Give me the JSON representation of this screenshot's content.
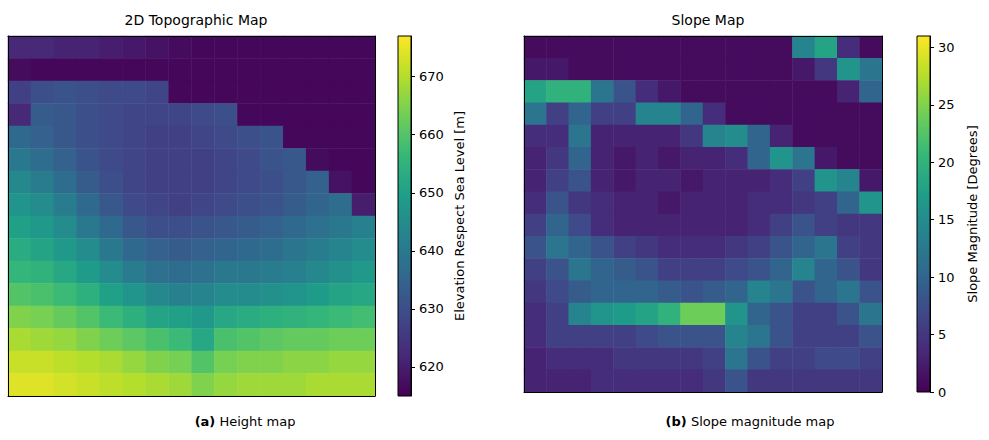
{
  "chart_data": [
    {
      "type": "heatmap",
      "title": "2D Topographic Map",
      "caption": {
        "label": "(a)",
        "text": "Height map"
      },
      "tick_labels": false,
      "colorbar_label": "Elevation Respect Sea Level [m]",
      "colorbar_range": [
        615,
        677
      ],
      "colorbar_ticks": [
        620,
        630,
        640,
        650,
        660,
        670
      ],
      "cells": [
        [
          622,
          622,
          621,
          621,
          620,
          619,
          618,
          617,
          616,
          616,
          616,
          616,
          616,
          616,
          616,
          616
        ],
        [
          617,
          616,
          616,
          616,
          616,
          616,
          616,
          616,
          616,
          616,
          616,
          616,
          616,
          616,
          616,
          616
        ],
        [
          627,
          630,
          631,
          630,
          629,
          629,
          628,
          616,
          616,
          616,
          616,
          616,
          616,
          616,
          616,
          616
        ],
        [
          622,
          633,
          632,
          630,
          629,
          628,
          628,
          628,
          629,
          630,
          616,
          616,
          616,
          616,
          616,
          616
        ],
        [
          636,
          634,
          632,
          630,
          629,
          628,
          627,
          627,
          628,
          629,
          630,
          631,
          616,
          616,
          616,
          616
        ],
        [
          640,
          637,
          634,
          631,
          629,
          628,
          627,
          627,
          627,
          628,
          629,
          631,
          632,
          617,
          616,
          616
        ],
        [
          644,
          641,
          637,
          633,
          630,
          628,
          627,
          627,
          627,
          628,
          629,
          630,
          632,
          634,
          618,
          616
        ],
        [
          647,
          645,
          641,
          636,
          632,
          629,
          628,
          627,
          628,
          629,
          630,
          631,
          633,
          635,
          637,
          620
        ],
        [
          650,
          648,
          645,
          640,
          636,
          632,
          630,
          630,
          631,
          632,
          633,
          634,
          636,
          638,
          640,
          642
        ],
        [
          653,
          651,
          648,
          645,
          640,
          636,
          634,
          633,
          634,
          635,
          636,
          637,
          639,
          641,
          643,
          645
        ],
        [
          656,
          655,
          652,
          649,
          645,
          641,
          638,
          637,
          638,
          640,
          640,
          641,
          642,
          644,
          646,
          648
        ],
        [
          660,
          659,
          657,
          654,
          650,
          647,
          644,
          642,
          643,
          645,
          645,
          646,
          647,
          649,
          651,
          652
        ],
        [
          665,
          664,
          662,
          660,
          657,
          654,
          651,
          650,
          648,
          652,
          653,
          654,
          655,
          656,
          657,
          658
        ],
        [
          669,
          668,
          667,
          665,
          663,
          661,
          659,
          657,
          652,
          659,
          660,
          661,
          662,
          662,
          663,
          663
        ],
        [
          672,
          672,
          671,
          670,
          669,
          667,
          665,
          664,
          660,
          664,
          665,
          665,
          666,
          666,
          667,
          667
        ],
        [
          674,
          674,
          673,
          672,
          671,
          670,
          669,
          668,
          665,
          667,
          668,
          668,
          668,
          669,
          669,
          669
        ]
      ]
    },
    {
      "type": "heatmap",
      "title": "Slope Map",
      "caption": {
        "label": "(b)",
        "text": "Slope magnitude map"
      },
      "tick_labels": false,
      "colorbar_label": "Slope Magnitude [Degrees]",
      "colorbar_range": [
        0,
        31
      ],
      "colorbar_ticks": [
        0,
        5,
        10,
        15,
        20,
        25,
        30
      ],
      "cells": [
        [
          1,
          1,
          1,
          1,
          1,
          1,
          1,
          1,
          1,
          1,
          1,
          1,
          14,
          18,
          4,
          1
        ],
        [
          2,
          2,
          1,
          1,
          1,
          1,
          1,
          1,
          1,
          1,
          1,
          1,
          2,
          5,
          16,
          12
        ],
        [
          18,
          20,
          20,
          12,
          8,
          4,
          2,
          1,
          1,
          1,
          1,
          1,
          1,
          1,
          3,
          10
        ],
        [
          12,
          6,
          10,
          6,
          6,
          14,
          14,
          10,
          4,
          1,
          1,
          1,
          1,
          1,
          1,
          1
        ],
        [
          4,
          4,
          12,
          3,
          3,
          3,
          3,
          5,
          14,
          15,
          10,
          3,
          1,
          1,
          1,
          1
        ],
        [
          3,
          5,
          10,
          3,
          2,
          3,
          2,
          3,
          3,
          4,
          10,
          16,
          12,
          2,
          1,
          1
        ],
        [
          3,
          6,
          8,
          3,
          2,
          3,
          3,
          2,
          3,
          3,
          3,
          4,
          6,
          16,
          14,
          2
        ],
        [
          4,
          8,
          5,
          4,
          3,
          3,
          2,
          3,
          3,
          3,
          4,
          4,
          5,
          6,
          10,
          16
        ],
        [
          6,
          10,
          7,
          4,
          3,
          3,
          3,
          3,
          3,
          3,
          4,
          6,
          8,
          6,
          5,
          5
        ],
        [
          8,
          12,
          10,
          8,
          6,
          5,
          4,
          4,
          4,
          5,
          6,
          8,
          10,
          12,
          6,
          5
        ],
        [
          6,
          8,
          12,
          10,
          9,
          8,
          6,
          6,
          6,
          7,
          8,
          10,
          14,
          10,
          8,
          5
        ],
        [
          5,
          7,
          9,
          10,
          10,
          10,
          9,
          8,
          9,
          10,
          14,
          12,
          8,
          10,
          12,
          8
        ],
        [
          4,
          6,
          14,
          16,
          17,
          18,
          20,
          24,
          24,
          16,
          10,
          8,
          6,
          6,
          8,
          12
        ],
        [
          4,
          6,
          6,
          6,
          6,
          7,
          8,
          8,
          8,
          14,
          12,
          8,
          6,
          6,
          6,
          8
        ],
        [
          3,
          4,
          4,
          4,
          5,
          5,
          5,
          5,
          6,
          12,
          8,
          6,
          6,
          7,
          7,
          6
        ],
        [
          3,
          3,
          3,
          4,
          4,
          4,
          4,
          4,
          5,
          8,
          5,
          5,
          5,
          5,
          5,
          5
        ]
      ]
    }
  ]
}
